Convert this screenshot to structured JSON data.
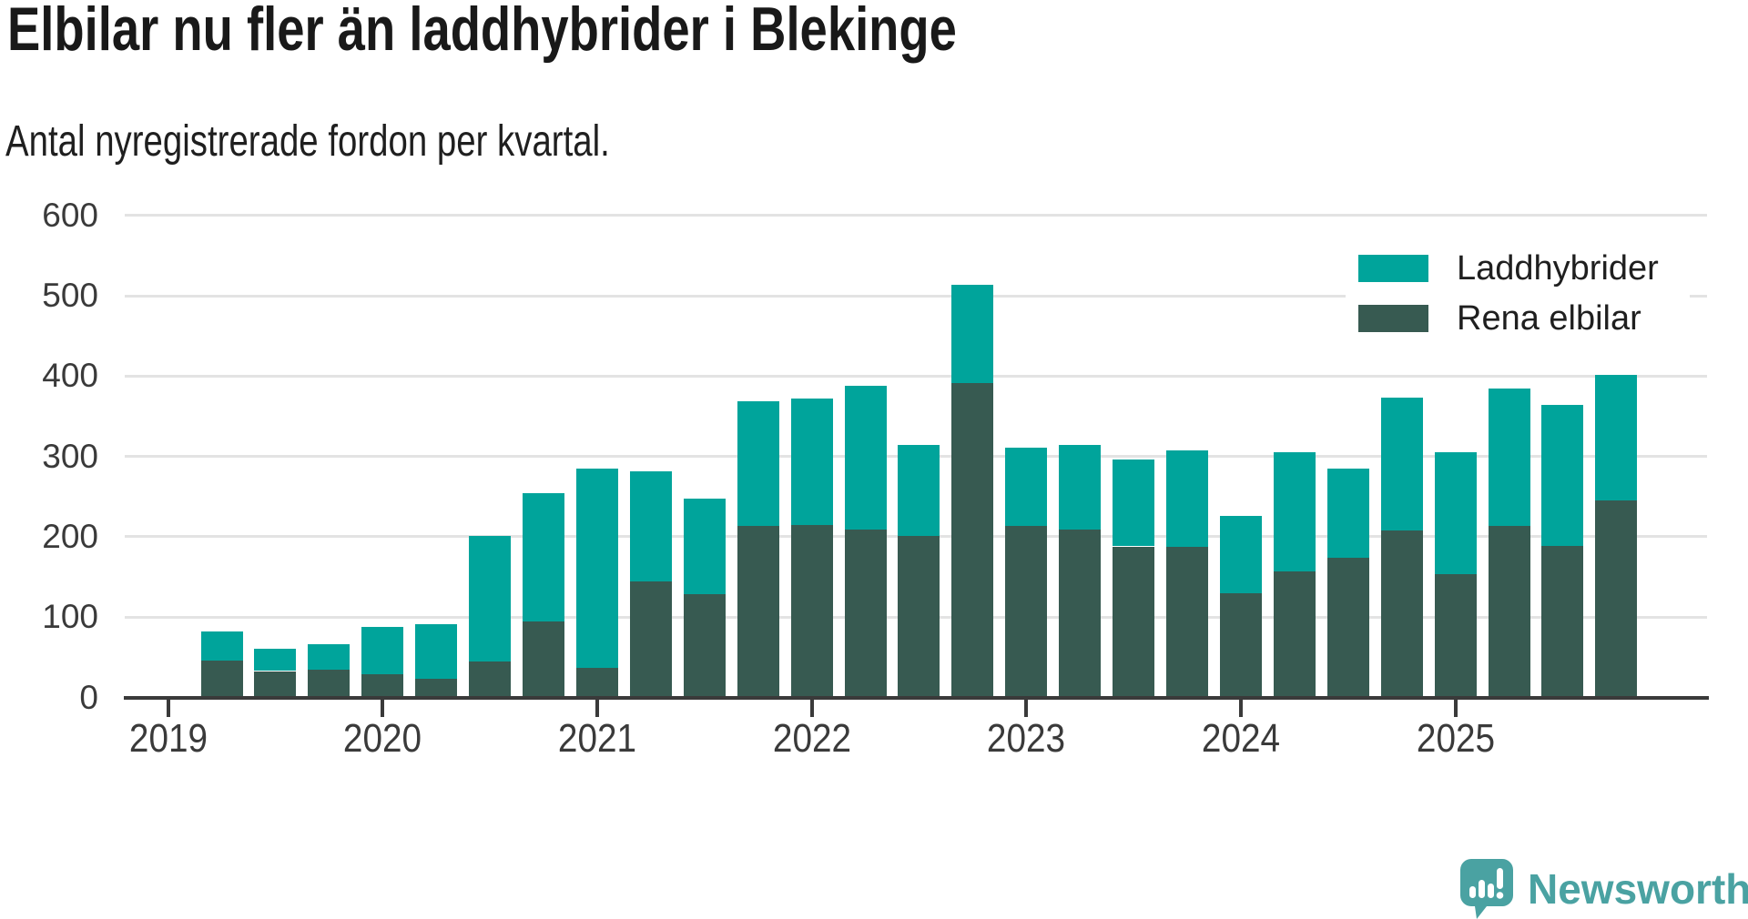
{
  "title": "Elbilar nu fler än laddhybrider i Blekinge",
  "subtitle": "Antal nyregistrerade fordon per kvartal.",
  "branding": {
    "logo_text": "Newsworthy",
    "logo_color": "#4aa2a2"
  },
  "colors": {
    "laddhybrider": "#00a49b",
    "rena_elbilar": "#375a51",
    "gridline": "#e3e3e3",
    "axis": "#3a3a3a",
    "tick_label": "#3a3a3a",
    "title_text": "#191919",
    "background": "#ffffff"
  },
  "legend": {
    "items": [
      {
        "label": "Laddhybrider",
        "color": "#00a49b"
      },
      {
        "label": "Rena elbilar",
        "color": "#375a51"
      }
    ]
  },
  "chart_data": {
    "type": "bar",
    "stacked": true,
    "title": "Elbilar nu fler än laddhybrider i Blekinge",
    "subtitle": "Antal nyregistrerade fordon per kvartal.",
    "xlabel": "",
    "ylabel": "",
    "grid": true,
    "legend_position": "top-right",
    "ylim": [
      0,
      600
    ],
    "yticks": [
      0,
      100,
      200,
      300,
      400,
      500,
      600
    ],
    "xticks": [
      "2019",
      "2020",
      "2021",
      "2022",
      "2023",
      "2024",
      "2025"
    ],
    "categories": [
      "2019 Q2",
      "2019 Q3",
      "2019 Q4",
      "2020 Q1",
      "2020 Q2",
      "2020 Q3",
      "2020 Q4",
      "2021 Q1",
      "2021 Q2",
      "2021 Q3",
      "2021 Q4",
      "2022 Q1",
      "2022 Q2",
      "2022 Q3",
      "2022 Q4",
      "2023 Q1",
      "2023 Q2",
      "2023 Q3",
      "2023 Q4",
      "2024 Q1",
      "2024 Q2",
      "2024 Q3",
      "2024 Q4",
      "2025 Q1",
      "2025 Q2",
      "2025 Q3",
      "2025 Q4"
    ],
    "series": [
      {
        "name": "Rena elbilar",
        "color": "#375a51",
        "stack_order": "bottom",
        "values": [
          46,
          33,
          35,
          29,
          23,
          45,
          95,
          37,
          144,
          129,
          214,
          215,
          209,
          201,
          391,
          214,
          209,
          188,
          187,
          130,
          157,
          174,
          208,
          154,
          214,
          189,
          245
        ]
      },
      {
        "name": "Laddhybrider",
        "color": "#00a49b",
        "stack_order": "top",
        "values": [
          36,
          28,
          31,
          59,
          68,
          156,
          159,
          248,
          138,
          118,
          155,
          157,
          179,
          113,
          123,
          97,
          105,
          108,
          121,
          96,
          148,
          111,
          165,
          151,
          170,
          175,
          156
        ]
      }
    ],
    "totals": [
      82,
      61,
      66,
      88,
      91,
      201,
      254,
      285,
      282,
      247,
      369,
      372,
      388,
      314,
      514,
      311,
      314,
      296,
      308,
      226,
      305,
      285,
      373,
      305,
      384,
      364,
      401
    ]
  }
}
